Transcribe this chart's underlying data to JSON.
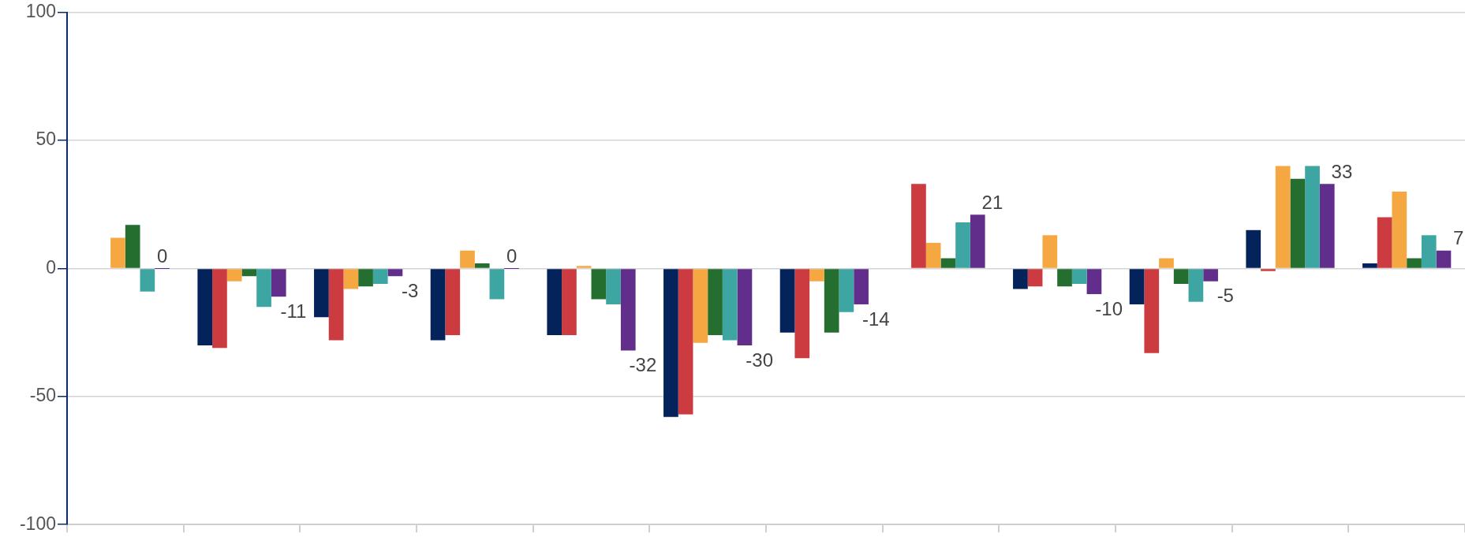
{
  "chart_data": {
    "type": "bar",
    "categories": [
      null,
      null,
      null,
      null,
      null,
      null,
      null,
      null,
      null,
      null,
      null,
      null
    ],
    "series": [
      {
        "color": "#04235a",
        "values": [
          null,
          -30,
          -19,
          -28,
          -26,
          -58,
          -25,
          null,
          -8,
          -14,
          15,
          2
        ]
      },
      {
        "color": "#cc3b3f",
        "values": [
          null,
          -31,
          -28,
          -26,
          -26,
          -57,
          -35,
          33,
          -7,
          -33,
          -1,
          20
        ]
      },
      {
        "color": "#f5a742",
        "values": [
          12,
          -5,
          -8,
          7,
          1,
          -29,
          -5,
          10,
          13,
          4,
          40,
          30
        ]
      },
      {
        "color": "#246e30",
        "values": [
          17,
          -3,
          -7,
          2,
          -12,
          -26,
          -25,
          4,
          -7,
          -6,
          35,
          4
        ]
      },
      {
        "color": "#3ea6a2",
        "values": [
          -9,
          -15,
          -6,
          -12,
          -14,
          -28,
          -17,
          18,
          -6,
          -13,
          40,
          13
        ]
      },
      {
        "color": "#622e8c",
        "values": [
          0,
          -11,
          -3,
          0,
          -32,
          -30,
          -14,
          21,
          -10,
          -5,
          33,
          7
        ],
        "value_labels": [
          "0",
          "-11",
          "-3",
          "0",
          "-32",
          "-30",
          "-14",
          "21",
          "-10",
          "-5",
          "33",
          "7"
        ]
      }
    ],
    "ylim": [
      -100,
      100
    ],
    "yticks": [
      -100,
      -50,
      0,
      50,
      100
    ],
    "grid": "y",
    "legend": false
  }
}
